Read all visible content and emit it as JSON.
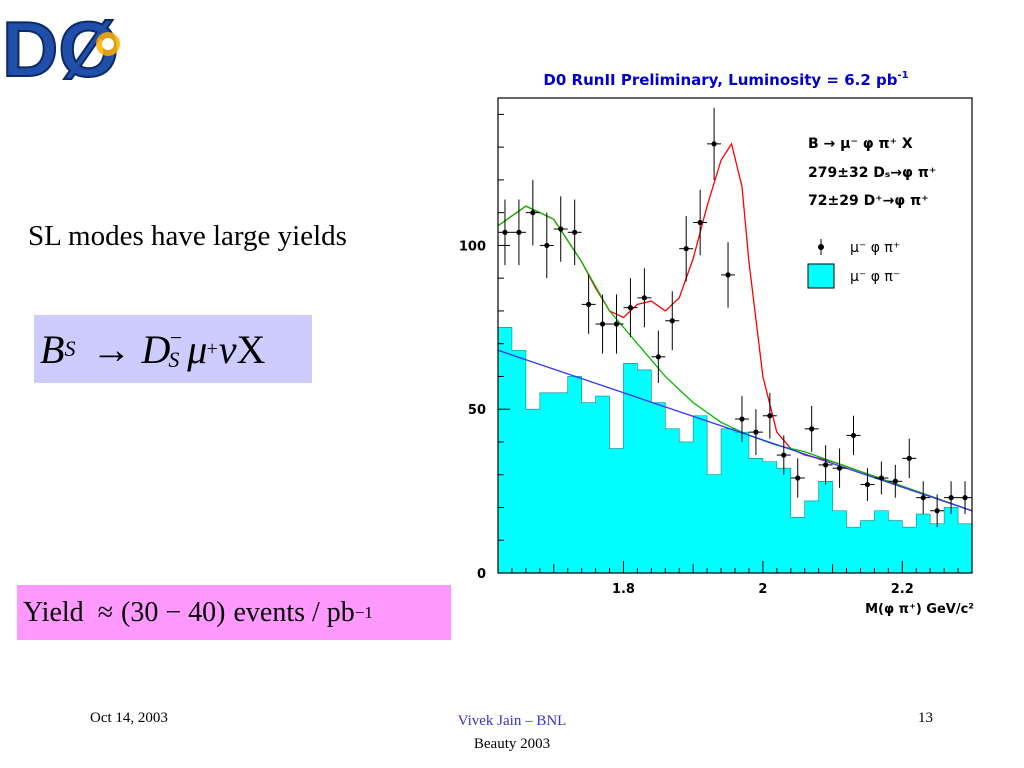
{
  "logo": {
    "text": "DØ"
  },
  "slide": {
    "text_line": "SL modes have large yields",
    "formula": {
      "b": "B",
      "b_sub": "S",
      "arrow": "→",
      "d": "D",
      "d_sub": "S",
      "d_sup": "−",
      "mu": "μ",
      "mu_sup": "+",
      "nu": "ν",
      "x": "X"
    },
    "yield": {
      "label": "Yield",
      "approx": "≈",
      "range": "(30 − 40)",
      "unit": "events / pb",
      "unit_sup": "−1"
    }
  },
  "chart_data": {
    "type": "histogram",
    "title": "D0 RunII  Preliminary, Luminosity = 6.2 pb",
    "title_sup": "-1",
    "xlabel": "M(φ π⁺) GeV/c²",
    "ylabel": "",
    "xlim": [
      1.62,
      2.3
    ],
    "ylim": [
      0,
      145
    ],
    "x_ticks": [
      1.8,
      2,
      2.2
    ],
    "x_tick_labels": [
      "1.8",
      "2",
      "2.2"
    ],
    "y_ticks": [
      0,
      50,
      100
    ],
    "y_tick_labels": [
      "0",
      "50",
      "100"
    ],
    "annotations": {
      "reaction": "B → μ⁻ φ π⁺ X",
      "ds_yield": "279±32  Dₛ→φ π⁺",
      "dplus_yield": "72±29  D⁺→φ π⁺"
    },
    "legend": [
      {
        "name": "μ⁻ φ π⁺",
        "marker": "point"
      },
      {
        "name": "μ⁻ φ π⁻",
        "marker": "filled-box"
      }
    ],
    "legend_position": "top-right",
    "series": [
      {
        "name": "μ⁻ φ π⁺",
        "kind": "points",
        "x": [
          1.63,
          1.65,
          1.67,
          1.69,
          1.71,
          1.73,
          1.75,
          1.77,
          1.79,
          1.81,
          1.83,
          1.85,
          1.87,
          1.89,
          1.91,
          1.93,
          1.95,
          1.97,
          1.99,
          2.01,
          2.03,
          2.05,
          2.07,
          2.09,
          2.11,
          2.13,
          2.15,
          2.17,
          2.19,
          2.21,
          2.23,
          2.25,
          2.27,
          2.29
        ],
        "y": [
          104,
          104,
          110,
          100,
          105,
          104,
          82,
          76,
          76,
          81,
          84,
          66,
          77,
          99,
          107,
          131,
          91,
          47,
          43,
          48,
          36,
          29,
          44,
          33,
          32,
          42,
          27,
          29,
          28,
          35,
          23,
          19,
          23,
          23
        ],
        "err": [
          10,
          10,
          10,
          10,
          10,
          10,
          9,
          9,
          9,
          9,
          9,
          8,
          9,
          10,
          10,
          11,
          10,
          7,
          7,
          7,
          6,
          6,
          7,
          6,
          6,
          6,
          5,
          5,
          5,
          6,
          5,
          5,
          5,
          5
        ]
      },
      {
        "name": "μ⁻ φ π⁻",
        "kind": "filled-histogram",
        "bin_edges": [
          1.62,
          1.64,
          1.66,
          1.68,
          1.7,
          1.72,
          1.74,
          1.76,
          1.78,
          1.8,
          1.82,
          1.84,
          1.86,
          1.88,
          1.9,
          1.92,
          1.94,
          1.96,
          1.98,
          2.0,
          2.02,
          2.04,
          2.06,
          2.08,
          2.1,
          2.12,
          2.14,
          2.16,
          2.18,
          2.2,
          2.22,
          2.24,
          2.26,
          2.28,
          2.3
        ],
        "values": [
          75,
          68,
          50,
          55,
          55,
          60,
          52,
          54,
          38,
          64,
          62,
          52,
          44,
          40,
          48,
          30,
          44,
          43,
          35,
          34,
          32,
          17,
          22,
          28,
          19,
          14,
          16,
          19,
          16,
          14,
          18,
          15,
          20,
          15
        ],
        "color": "#00ffff"
      },
      {
        "name": "",
        "kind": "line",
        "color": "#ff0000",
        "x": [
          1.62,
          1.66,
          1.7,
          1.74,
          1.76,
          1.78,
          1.8,
          1.82,
          1.84,
          1.86,
          1.88,
          1.9,
          1.92,
          1.94,
          1.955,
          1.97,
          1.98,
          2.0,
          2.02,
          2.04,
          2.06,
          2.1,
          2.14,
          2.18,
          2.22,
          2.26,
          2.3
        ],
        "y": [
          106,
          112,
          108,
          95,
          87,
          80,
          78,
          82,
          83,
          80,
          84,
          96,
          112,
          126,
          131,
          118,
          95,
          60,
          43,
          38,
          36,
          34,
          31,
          28,
          25,
          22,
          19
        ]
      },
      {
        "name": "",
        "kind": "line",
        "color": "#00bb00",
        "x": [
          1.62,
          1.66,
          1.7,
          1.74,
          1.78,
          1.82,
          1.86,
          1.9,
          1.94,
          1.98,
          2.02,
          2.06,
          2.1,
          2.14,
          2.18,
          2.22,
          2.26,
          2.3
        ],
        "y": [
          106,
          112,
          108,
          95,
          80,
          70,
          60,
          52,
          46,
          42,
          39,
          37,
          34,
          31,
          28,
          25,
          22,
          19
        ]
      },
      {
        "name": "",
        "kind": "line",
        "color": "#3333ff",
        "x": [
          1.62,
          2.3
        ],
        "y": [
          68,
          19
        ]
      }
    ],
    "colors": {
      "axis": "#000000",
      "title": "#0000cc",
      "fill": "#00ffff"
    }
  },
  "footer": {
    "date": "Oct 14, 2003",
    "author": "Vivek Jain – BNL",
    "event": "Beauty 2003",
    "page": "13"
  }
}
